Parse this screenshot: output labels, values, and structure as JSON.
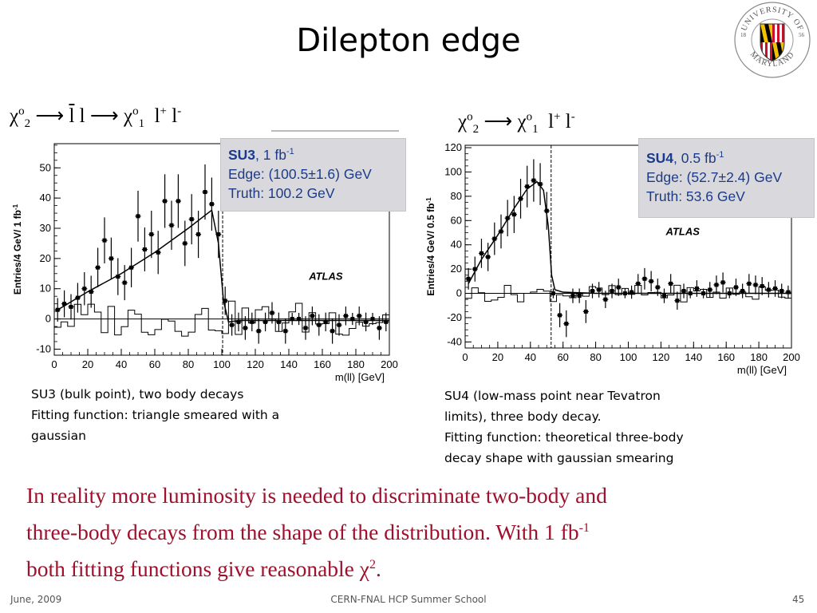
{
  "slide": {
    "title": "Dilepton edge",
    "logo_text": {
      "top": "UNIVERSITY OF",
      "bottom": "MARYLAND",
      "left_year": "18",
      "right_year": "56"
    },
    "footer": {
      "date": "June, 2009",
      "center": "CERN-FNAL HCP Summer School",
      "page": "45"
    },
    "conclusion": {
      "line1": "In reality more luminosity is needed to discriminate two-body and",
      "line2_prefix": "three-body decays from the shape of the distribution. With 1 fb",
      "line2_sup": "-1",
      "line3_prefix": "both fitting functions give reasonable ",
      "chi": "χ",
      "chi_sup": "2",
      "line3_suffix": "."
    }
  },
  "left": {
    "formula": {
      "chi1": "χ",
      "sup1": "o",
      "sub1": "2",
      "arrow1": " ⟶ ",
      "slepton": "l",
      "l": " l ",
      "arrow2": "⟶ ",
      "chi2": "χ",
      "sup2": "o",
      "sub2": "1",
      "lep1": "l",
      "lep1_sup": "+",
      "lep2": " l",
      "lep2_sup": "-"
    },
    "info": {
      "label": "SU3",
      "lumi": ", 1 fb",
      "lumi_sup": "-1",
      "edge": "Edge: (100.5±1.6) GeV",
      "truth": "Truth: 100.2 GeV"
    },
    "experiment": "ATLAS",
    "caption": [
      "SU3 (bulk point), two body decays",
      "Fitting function: triangle smeared with a",
      "gaussian"
    ]
  },
  "right": {
    "formula": {
      "chi1": "χ",
      "sup1": "o",
      "sub1": "2",
      "arrow": " ⟶ ",
      "chi2": "χ",
      "sup2": "o",
      "sub2": "1",
      "lep1": "l",
      "lep1_sup": "+",
      "lep2": " l",
      "lep2_sup": "-"
    },
    "info": {
      "label": "SU4",
      "lumi": ", 0.5 fb",
      "lumi_sup": "-1",
      "edge": "Edge: (52.7±2.4) GeV",
      "truth": "Truth: 53.6 GeV"
    },
    "experiment": "ATLAS",
    "caption": [
      "SU4 (low-mass point near Tevatron",
      "limits), three body decay.",
      "Fitting function: theoretical three-body",
      "decay shape with gaussian smearing"
    ]
  },
  "chart_data": [
    {
      "type": "scatter",
      "title": "",
      "xlabel": "m(ll) [GeV]",
      "ylabel": "Entries/4 GeV/ 1 fb",
      "ylabel_sup": "-1",
      "xlim": [
        0,
        200
      ],
      "ylim": [
        -12,
        58
      ],
      "xticks": [
        0,
        20,
        40,
        60,
        80,
        100,
        120,
        140,
        160,
        180,
        200
      ],
      "yticks": [
        -10,
        0,
        10,
        20,
        30,
        40,
        50
      ],
      "grid": false,
      "edge_line_x": 100.5,
      "fit_function": "triangle smeared with a gaussian",
      "series": [
        {
          "values": [
            [
              2,
              3
            ],
            [
              6,
              5
            ],
            [
              10,
              4
            ],
            [
              14,
              7
            ],
            [
              18,
              10
            ],
            [
              22,
              9
            ],
            [
              26,
              17
            ],
            [
              30,
              26
            ],
            [
              34,
              20
            ],
            [
              38,
              14
            ],
            [
              42,
              12
            ],
            [
              46,
              17
            ],
            [
              50,
              34
            ],
            [
              54,
              23
            ],
            [
              58,
              28
            ],
            [
              62,
              22
            ],
            [
              66,
              39
            ],
            [
              70,
              31
            ],
            [
              74,
              39
            ],
            [
              78,
              25
            ],
            [
              82,
              33
            ],
            [
              86,
              28
            ],
            [
              90,
              42
            ],
            [
              94,
              38
            ],
            [
              98,
              28
            ],
            [
              102,
              6
            ],
            [
              106,
              -2
            ],
            [
              110,
              -1
            ],
            [
              114,
              -3
            ],
            [
              118,
              -1
            ],
            [
              122,
              -4
            ],
            [
              126,
              -1
            ],
            [
              130,
              2
            ],
            [
              134,
              -1
            ],
            [
              138,
              -4
            ],
            [
              142,
              0
            ],
            [
              146,
              0
            ],
            [
              150,
              -3
            ],
            [
              154,
              1
            ],
            [
              158,
              -2
            ],
            [
              162,
              -1
            ],
            [
              166,
              -4
            ],
            [
              170,
              -2
            ],
            [
              174,
              1
            ],
            [
              178,
              0
            ],
            [
              182,
              1
            ],
            [
              186,
              -1
            ],
            [
              190,
              0
            ],
            [
              194,
              -3
            ],
            [
              198,
              -1
            ]
          ]
        }
      ]
    },
    {
      "type": "scatter",
      "title": "",
      "xlabel": "m(ll) [GeV]",
      "ylabel": "Entries/4 GeV/ 0.5 fb",
      "ylabel_sup": "-1",
      "xlim": [
        0,
        200
      ],
      "ylim": [
        -45,
        122
      ],
      "xticks": [
        0,
        20,
        40,
        60,
        80,
        100,
        120,
        140,
        160,
        180,
        200
      ],
      "yticks": [
        -40,
        -20,
        0,
        20,
        40,
        60,
        80,
        100,
        120
      ],
      "grid": false,
      "edge_line_x": 52.7,
      "fit_function": "theoretical three-body decay shape with gaussian smearing",
      "series": [
        {
          "values": [
            [
              2,
              12
            ],
            [
              6,
              20
            ],
            [
              10,
              33
            ],
            [
              14,
              30
            ],
            [
              18,
              45
            ],
            [
              22,
              51
            ],
            [
              26,
              62
            ],
            [
              30,
              65
            ],
            [
              34,
              78
            ],
            [
              38,
              88
            ],
            [
              42,
              93
            ],
            [
              46,
              90
            ],
            [
              50,
              68
            ],
            [
              54,
              0
            ],
            [
              58,
              -18
            ],
            [
              62,
              -25
            ],
            [
              66,
              -2
            ],
            [
              70,
              -2
            ],
            [
              74,
              -15
            ],
            [
              78,
              2
            ],
            [
              82,
              3
            ],
            [
              86,
              -5
            ],
            [
              90,
              2
            ],
            [
              94,
              5
            ],
            [
              98,
              0
            ],
            [
              102,
              1
            ],
            [
              106,
              8
            ],
            [
              110,
              12
            ],
            [
              114,
              10
            ],
            [
              118,
              5
            ],
            [
              122,
              -2
            ],
            [
              126,
              8
            ],
            [
              130,
              -6
            ],
            [
              134,
              2
            ],
            [
              138,
              0
            ],
            [
              142,
              4
            ],
            [
              146,
              0
            ],
            [
              150,
              3
            ],
            [
              154,
              7
            ],
            [
              158,
              9
            ],
            [
              162,
              0
            ],
            [
              166,
              5
            ],
            [
              170,
              2
            ],
            [
              174,
              8
            ],
            [
              178,
              7
            ],
            [
              182,
              6
            ],
            [
              186,
              3
            ],
            [
              190,
              4
            ],
            [
              194,
              2
            ],
            [
              198,
              1
            ]
          ]
        }
      ]
    }
  ]
}
